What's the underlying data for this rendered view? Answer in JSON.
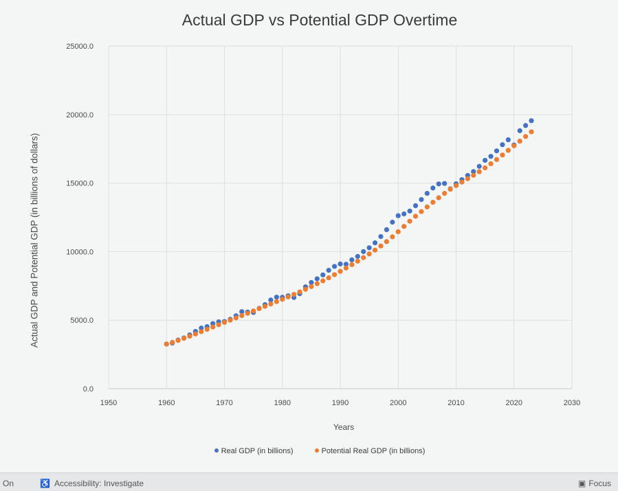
{
  "chart_data": {
    "type": "scatter",
    "title": "Actual GDP vs Potential GDP Overtime",
    "xlabel": "Years",
    "ylabel": "Actual GDP and Potential GDP (in billions of dollars)",
    "xlim": [
      1950,
      2030
    ],
    "ylim": [
      0,
      25000
    ],
    "x_ticks": [
      "1950",
      "1960",
      "1970",
      "1980",
      "1990",
      "2000",
      "2010",
      "2020",
      "2030"
    ],
    "y_ticks": [
      "0.0",
      "5000.0",
      "10000.0",
      "15000.0",
      "20000.0",
      "25000.0"
    ],
    "grid": true,
    "legend_position": "bottom",
    "series": [
      {
        "name": "Real GDP (in billions)",
        "color": "#4472c4",
        "points": [
          [
            1960,
            3260
          ],
          [
            1961,
            3330
          ],
          [
            1962,
            3550
          ],
          [
            1963,
            3700
          ],
          [
            1964,
            3920
          ],
          [
            1965,
            4180
          ],
          [
            1966,
            4420
          ],
          [
            1967,
            4530
          ],
          [
            1968,
            4750
          ],
          [
            1969,
            4880
          ],
          [
            1970,
            4900
          ],
          [
            1971,
            5060
          ],
          [
            1972,
            5320
          ],
          [
            1973,
            5620
          ],
          [
            1974,
            5590
          ],
          [
            1975,
            5560
          ],
          [
            1976,
            5860
          ],
          [
            1977,
            6130
          ],
          [
            1978,
            6470
          ],
          [
            1979,
            6680
          ],
          [
            1980,
            6670
          ],
          [
            1981,
            6780
          ],
          [
            1982,
            6650
          ],
          [
            1983,
            6930
          ],
          [
            1984,
            7430
          ],
          [
            1985,
            7750
          ],
          [
            1986,
            8020
          ],
          [
            1987,
            8300
          ],
          [
            1988,
            8640
          ],
          [
            1989,
            8920
          ],
          [
            1990,
            9100
          ],
          [
            1991,
            9080
          ],
          [
            1992,
            9400
          ],
          [
            1993,
            9650
          ],
          [
            1994,
            10000
          ],
          [
            1995,
            10280
          ],
          [
            1996,
            10640
          ],
          [
            1997,
            11100
          ],
          [
            1998,
            11600
          ],
          [
            1999,
            12150
          ],
          [
            2000,
            12620
          ],
          [
            2001,
            12750
          ],
          [
            2002,
            12960
          ],
          [
            2003,
            13350
          ],
          [
            2004,
            13800
          ],
          [
            2005,
            14250
          ],
          [
            2006,
            14640
          ],
          [
            2007,
            14940
          ],
          [
            2008,
            14970
          ],
          [
            2009,
            14580
          ],
          [
            2010,
            14950
          ],
          [
            2011,
            15250
          ],
          [
            2012,
            15560
          ],
          [
            2013,
            15840
          ],
          [
            2014,
            16220
          ],
          [
            2015,
            16660
          ],
          [
            2016,
            16950
          ],
          [
            2017,
            17350
          ],
          [
            2018,
            17800
          ],
          [
            2019,
            18160
          ],
          [
            2020,
            17780
          ],
          [
            2021,
            18820
          ],
          [
            2022,
            19200
          ],
          [
            2023,
            19550
          ]
        ]
      },
      {
        "name": "Potential Real GDP (in billions)",
        "color": "#ed7d31",
        "points": [
          [
            1960,
            3250
          ],
          [
            1961,
            3380
          ],
          [
            1962,
            3520
          ],
          [
            1963,
            3670
          ],
          [
            1964,
            3830
          ],
          [
            1965,
            3990
          ],
          [
            1966,
            4160
          ],
          [
            1967,
            4330
          ],
          [
            1968,
            4500
          ],
          [
            1969,
            4670
          ],
          [
            1970,
            4840
          ],
          [
            1971,
            5000
          ],
          [
            1972,
            5160
          ],
          [
            1973,
            5330
          ],
          [
            1974,
            5500
          ],
          [
            1975,
            5670
          ],
          [
            1976,
            5840
          ],
          [
            1977,
            6010
          ],
          [
            1978,
            6180
          ],
          [
            1979,
            6350
          ],
          [
            1980,
            6520
          ],
          [
            1981,
            6700
          ],
          [
            1982,
            6880
          ],
          [
            1983,
            7060
          ],
          [
            1984,
            7250
          ],
          [
            1985,
            7450
          ],
          [
            1986,
            7660
          ],
          [
            1987,
            7870
          ],
          [
            1988,
            8090
          ],
          [
            1989,
            8320
          ],
          [
            1990,
            8560
          ],
          [
            1991,
            8800
          ],
          [
            1992,
            9050
          ],
          [
            1993,
            9300
          ],
          [
            1994,
            9560
          ],
          [
            1995,
            9830
          ],
          [
            1996,
            10110
          ],
          [
            1997,
            10410
          ],
          [
            1998,
            10730
          ],
          [
            1999,
            11080
          ],
          [
            2000,
            11450
          ],
          [
            2001,
            11840
          ],
          [
            2002,
            12220
          ],
          [
            2003,
            12580
          ],
          [
            2004,
            12920
          ],
          [
            2005,
            13260
          ],
          [
            2006,
            13600
          ],
          [
            2007,
            13930
          ],
          [
            2008,
            14250
          ],
          [
            2009,
            14550
          ],
          [
            2010,
            14820
          ],
          [
            2011,
            15070
          ],
          [
            2012,
            15320
          ],
          [
            2013,
            15570
          ],
          [
            2014,
            15830
          ],
          [
            2015,
            16110
          ],
          [
            2016,
            16410
          ],
          [
            2017,
            16720
          ],
          [
            2018,
            17050
          ],
          [
            2019,
            17390
          ],
          [
            2020,
            17720
          ],
          [
            2021,
            18060
          ],
          [
            2022,
            18400
          ],
          [
            2023,
            18740
          ]
        ]
      }
    ]
  },
  "status_bar": {
    "left_text": "On",
    "accessibility_text": "Accessibility: Investigate",
    "focus_text": "Focus"
  }
}
